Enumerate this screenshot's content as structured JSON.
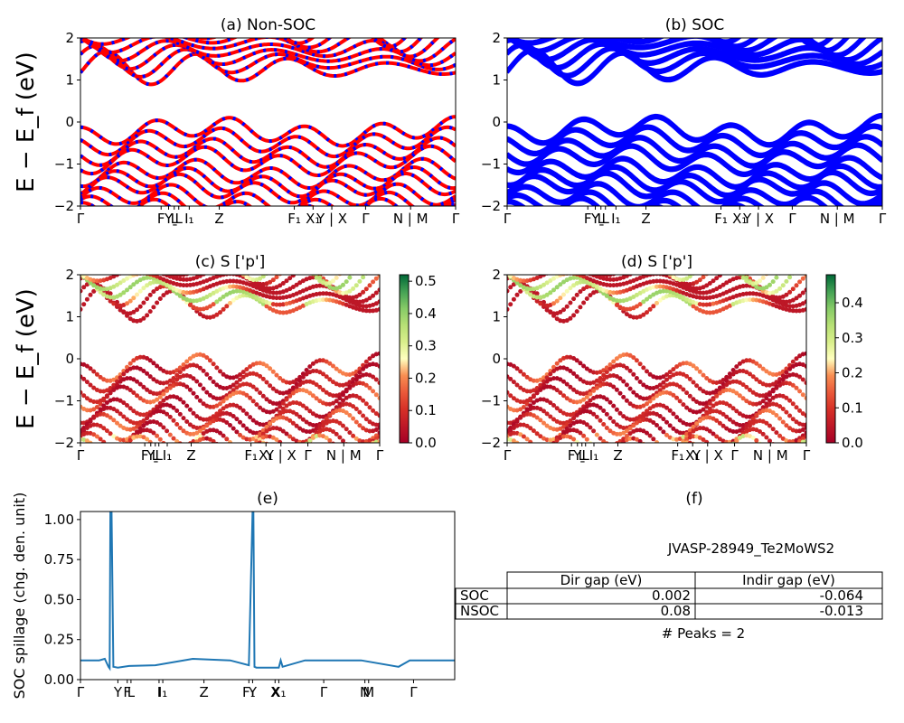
{
  "chart_data": [
    {
      "panel": "a",
      "type": "line",
      "title": "(a) Non-SOC",
      "ylabel": "E − E_f (eV)",
      "ylim": [
        -2,
        2
      ],
      "yticks": [
        "2",
        "1",
        "0",
        "−1",
        "−2"
      ],
      "kpath_labels": [
        "Γ",
        "F",
        "Y",
        "Ḻ",
        "L",
        "I₁",
        "Z",
        "F₁",
        "X₁",
        "Y | X",
        "Γ",
        "N | M",
        "Γ"
      ],
      "series": [
        {
          "color": "#ff0000"
        },
        {
          "color": "#0000ff"
        }
      ],
      "bands": {
        "valence_tops_eV": [
          0.0,
          -0.25,
          -0.5,
          -0.7,
          -1.0,
          -1.2,
          -1.3,
          -1.6,
          -1.8
        ],
        "conduction_bottoms_eV": [
          1.0,
          1.2,
          1.35,
          1.5,
          1.7
        ]
      }
    },
    {
      "panel": "b",
      "type": "line",
      "title": "(b) SOC",
      "ylim": [
        -2,
        2
      ],
      "yticks": [
        "2",
        "1",
        "0",
        "−1",
        "−2"
      ],
      "kpath_labels": [
        "Γ",
        "F",
        "Y",
        "Ḻ",
        "L",
        "I₁",
        "Z",
        "F₁",
        "X₁",
        "Y | X",
        "Γ",
        "N | M",
        "Γ"
      ],
      "series": [
        {
          "color": "#0000ff"
        }
      ]
    },
    {
      "panel": "c",
      "type": "scatter",
      "title": "(c)  S ['p']",
      "ylabel": "E − E_f (eV)",
      "ylim": [
        -2,
        2
      ],
      "yticks": [
        "2",
        "1",
        "0",
        "−1",
        "−2"
      ],
      "kpath_labels": [
        "Γ",
        "F",
        "Y",
        "Ḻ",
        "L",
        "I₁",
        "Z",
        "F₁",
        "X₁",
        "Y | X",
        "Γ",
        "N | M",
        "Γ"
      ],
      "colorbar": {
        "min": 0.0,
        "max": 0.52,
        "ticks": [
          "0.5",
          "0.4",
          "0.3",
          "0.2",
          "0.1",
          "0.0"
        ],
        "cmap": "RdYlGn"
      }
    },
    {
      "panel": "d",
      "type": "scatter",
      "title": "(d) S ['p']",
      "ylim": [
        -2,
        2
      ],
      "yticks": [
        "2",
        "1",
        "0",
        "−1",
        "−2"
      ],
      "kpath_labels": [
        "Γ",
        "F",
        "Y",
        "Ḻ",
        "L",
        "I₁",
        "Z",
        "F₁",
        "X₁",
        "Y | X",
        "Γ",
        "N | M",
        "Γ"
      ],
      "colorbar": {
        "min": 0.0,
        "max": 0.48,
        "ticks": [
          "0.4",
          "0.3",
          "0.2",
          "0.1",
          "0.0"
        ],
        "cmap": "RdYlGn"
      }
    },
    {
      "panel": "e",
      "type": "line",
      "title": "(e)",
      "ylabel": "SOC spillage (chg. den. unit)",
      "ylim": [
        0,
        1.05
      ],
      "yticks": [
        "1.00",
        "0.75",
        "0.50",
        "0.25",
        "0.00"
      ],
      "kpath_labels": [
        "Γ",
        "Y",
        "F",
        "L",
        "I",
        "I₁",
        "Z",
        "F₁",
        "Y",
        "X",
        "X₁",
        "Γ",
        "N",
        "M",
        "Γ"
      ],
      "series": [
        {
          "color": "#1f77b4",
          "x": [
            0,
            0.05,
            0.065,
            0.075,
            0.078,
            0.08,
            0.083,
            0.088,
            0.1,
            0.13,
            0.2,
            0.3,
            0.4,
            0.45,
            0.46,
            0.462,
            0.465,
            0.47,
            0.48,
            0.53,
            0.535,
            0.54,
            0.6,
            0.75,
            0.85,
            0.88,
            0.95,
            1.0
          ],
          "y": [
            0.12,
            0.12,
            0.13,
            0.08,
            0.07,
            1.05,
            1.05,
            0.08,
            0.075,
            0.085,
            0.09,
            0.13,
            0.12,
            0.09,
            1.05,
            1.05,
            0.08,
            0.075,
            0.075,
            0.075,
            0.12,
            0.08,
            0.12,
            0.12,
            0.08,
            0.12,
            0.12,
            0.12
          ]
        }
      ]
    },
    {
      "panel": "f",
      "type": "table",
      "title": "(f)",
      "caption": "JVASP-28949_Te2MoWS2",
      "columns": [
        "",
        "Dir gap (eV)",
        "Indir gap (eV)"
      ],
      "rows": [
        [
          "SOC",
          "0.002",
          "-0.064"
        ],
        [
          "NSOC",
          "0.08",
          "-0.013"
        ]
      ],
      "footer": "# Peaks = 2"
    }
  ]
}
